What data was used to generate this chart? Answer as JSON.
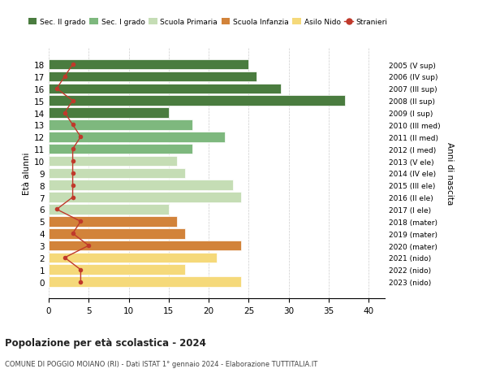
{
  "ages": [
    18,
    17,
    16,
    15,
    14,
    13,
    12,
    11,
    10,
    9,
    8,
    7,
    6,
    5,
    4,
    3,
    2,
    1,
    0
  ],
  "bar_values": [
    25,
    26,
    29,
    37,
    15,
    18,
    22,
    18,
    16,
    17,
    23,
    24,
    15,
    16,
    17,
    24,
    21,
    17,
    24
  ],
  "bar_colors": [
    "#4a7c3f",
    "#4a7c3f",
    "#4a7c3f",
    "#4a7c3f",
    "#4a7c3f",
    "#7eb87e",
    "#7eb87e",
    "#7eb87e",
    "#c5ddb5",
    "#c5ddb5",
    "#c5ddb5",
    "#c5ddb5",
    "#c5ddb5",
    "#d2833a",
    "#d2833a",
    "#d2833a",
    "#f5d97a",
    "#f5d97a",
    "#f5d97a"
  ],
  "stranieri_values": [
    3,
    2,
    1,
    3,
    2,
    3,
    4,
    3,
    3,
    3,
    3,
    3,
    1,
    4,
    3,
    5,
    2,
    4,
    4
  ],
  "right_labels": [
    "2005 (V sup)",
    "2006 (IV sup)",
    "2007 (III sup)",
    "2008 (II sup)",
    "2009 (I sup)",
    "2010 (III med)",
    "2011 (II med)",
    "2012 (I med)",
    "2013 (V ele)",
    "2014 (IV ele)",
    "2015 (III ele)",
    "2016 (II ele)",
    "2017 (I ele)",
    "2018 (mater)",
    "2019 (mater)",
    "2020 (mater)",
    "2021 (nido)",
    "2022 (nido)",
    "2023 (nido)"
  ],
  "legend_labels": [
    "Sec. II grado",
    "Sec. I grado",
    "Scuola Primaria",
    "Scuola Infanzia",
    "Asilo Nido",
    "Stranieri"
  ],
  "legend_colors": [
    "#4a7c3f",
    "#7eb87e",
    "#c5ddb5",
    "#d2833a",
    "#f5d97a",
    "#c0392b"
  ],
  "ylabel_left": "Età alunni",
  "ylabel_right": "Anni di nascita",
  "title": "Popolazione per età scolastica - 2024",
  "subtitle": "COMUNE DI POGGIO MOIANO (RI) - Dati ISTAT 1° gennaio 2024 - Elaborazione TUTTITALIA.IT",
  "xlim": [
    0,
    42
  ],
  "xticks": [
    0,
    5,
    10,
    15,
    20,
    25,
    30,
    35,
    40
  ],
  "stranieri_color": "#c0392b",
  "bg_color": "#ffffff",
  "grid_color": "#cccccc"
}
